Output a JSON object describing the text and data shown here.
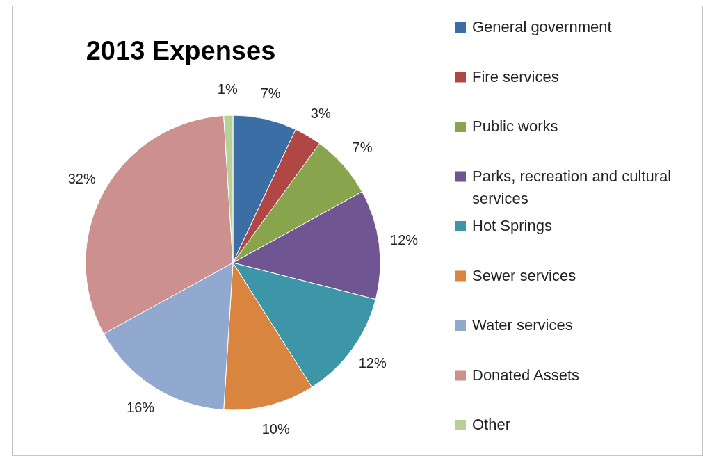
{
  "chart_data": {
    "type": "pie",
    "title": "2013 Expenses",
    "categories": [
      "General government",
      "Fire services",
      "Public works",
      "Parks, recreation and cultural services",
      "Hot Springs",
      "Sewer services",
      "Water services",
      "Donated Assets",
      "Other"
    ],
    "values": [
      7,
      3,
      7,
      12,
      12,
      10,
      16,
      32,
      1
    ],
    "colors": [
      "#3a6ea5",
      "#b04744",
      "#88a44c",
      "#6f5591",
      "#3d96a8",
      "#d9843f",
      "#91a8cf",
      "#cc908e",
      "#b6d09a"
    ],
    "value_labels": [
      "7%",
      "3%",
      "7%",
      "12%",
      "12%",
      "10%",
      "16%",
      "32%",
      "1%"
    ],
    "legend": "right"
  }
}
